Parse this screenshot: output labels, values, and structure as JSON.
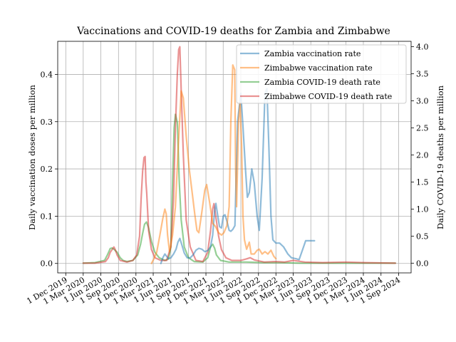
{
  "chart_data": {
    "type": "line",
    "title": "Vaccinations and COVID-19 deaths for Zambia and Zimbabwe",
    "ylabel_left": "Daily vaccination doses per million",
    "ylabel_right": "Daily COVID-19 deaths per million",
    "xlabel": "",
    "grid": true,
    "legend_position": "top-right",
    "xlim": [
      "2019-10-20",
      "2024-11-05"
    ],
    "ylim_left": [
      -0.02,
      0.47
    ],
    "ylim_right": [
      -0.18,
      4.1
    ],
    "x_tick_labels": [
      {
        "date": "2019-12-01",
        "label": "1 Dec 2019"
      },
      {
        "date": "2020-03-01",
        "label": "1 Mar 2020"
      },
      {
        "date": "2020-06-01",
        "label": "1 Jun 2020"
      },
      {
        "date": "2020-09-01",
        "label": "1 Sep 2020"
      },
      {
        "date": "2020-12-01",
        "label": "1 Dec 2020"
      },
      {
        "date": "2021-03-01",
        "label": "1 Mar 2021"
      },
      {
        "date": "2021-06-01",
        "label": "1 Jun 2021"
      },
      {
        "date": "2021-09-01",
        "label": "1 Sep 2021"
      },
      {
        "date": "2021-12-01",
        "label": "1 Dec 2021"
      },
      {
        "date": "2022-03-01",
        "label": "1 Mar 2022"
      },
      {
        "date": "2022-06-01",
        "label": "1 Jun 2022"
      },
      {
        "date": "2022-09-01",
        "label": "1 Sep 2022"
      },
      {
        "date": "2022-12-01",
        "label": "1 Dec 2022"
      },
      {
        "date": "2023-03-01",
        "label": "1 Mar 2023"
      },
      {
        "date": "2023-06-01",
        "label": "1 Jun 2023"
      },
      {
        "date": "2023-09-01",
        "label": "1 Sep 2023"
      },
      {
        "date": "2023-12-01",
        "label": "1 Dec 2023"
      },
      {
        "date": "2024-03-01",
        "label": "1 Mar 2024"
      },
      {
        "date": "2024-06-01",
        "label": "1 Jun 2024"
      },
      {
        "date": "2024-09-01",
        "label": "1 Sep 2024"
      }
    ],
    "y_ticks_left": [
      {
        "value": 0.0,
        "label": "0.0"
      },
      {
        "value": 0.1,
        "label": "0.1"
      },
      {
        "value": 0.2,
        "label": "0.2"
      },
      {
        "value": 0.3,
        "label": "0.3"
      },
      {
        "value": 0.4,
        "label": "0.4"
      }
    ],
    "y_ticks_right": [
      {
        "value": 0.0,
        "label": "0.0"
      },
      {
        "value": 0.5,
        "label": "0.5"
      },
      {
        "value": 1.0,
        "label": "1.0"
      },
      {
        "value": 1.5,
        "label": "1.5"
      },
      {
        "value": 2.0,
        "label": "2.0"
      },
      {
        "value": 2.5,
        "label": "2.5"
      },
      {
        "value": 3.0,
        "label": "3.0"
      },
      {
        "value": 3.5,
        "label": "3.5"
      },
      {
        "value": 4.0,
        "label": "4.0"
      }
    ],
    "series": [
      {
        "name": "Zambia vaccination rate",
        "axis": "left",
        "color": "#1f77b4",
        "points": [
          [
            "2021-04-10",
            0.0
          ],
          [
            "2021-04-20",
            0.012
          ],
          [
            "2021-05-01",
            0.02
          ],
          [
            "2021-05-10",
            0.015
          ],
          [
            "2021-05-20",
            0.01
          ],
          [
            "2021-06-01",
            0.012
          ],
          [
            "2021-06-15",
            0.02
          ],
          [
            "2021-06-28",
            0.03
          ],
          [
            "2021-07-08",
            0.045
          ],
          [
            "2021-07-18",
            0.053
          ],
          [
            "2021-07-28",
            0.04
          ],
          [
            "2021-08-10",
            0.022
          ],
          [
            "2021-08-25",
            0.012
          ],
          [
            "2021-09-10",
            0.012
          ],
          [
            "2021-09-25",
            0.018
          ],
          [
            "2021-10-10",
            0.028
          ],
          [
            "2021-10-25",
            0.032
          ],
          [
            "2021-11-10",
            0.03
          ],
          [
            "2021-11-25",
            0.025
          ],
          [
            "2021-12-10",
            0.027
          ],
          [
            "2021-12-25",
            0.035
          ],
          [
            "2022-01-05",
            0.06
          ],
          [
            "2022-01-15",
            0.11
          ],
          [
            "2022-01-22",
            0.127
          ],
          [
            "2022-02-01",
            0.1
          ],
          [
            "2022-02-10",
            0.078
          ],
          [
            "2022-02-20",
            0.075
          ],
          [
            "2022-03-01",
            0.1
          ],
          [
            "2022-03-10",
            0.103
          ],
          [
            "2022-03-20",
            0.09
          ],
          [
            "2022-04-01",
            0.07
          ],
          [
            "2022-04-10",
            0.068
          ],
          [
            "2022-04-20",
            0.072
          ],
          [
            "2022-05-01",
            0.08
          ],
          [
            "2022-05-15",
            0.3
          ],
          [
            "2022-06-01",
            0.36
          ],
          [
            "2022-06-12",
            0.29
          ],
          [
            "2022-06-25",
            0.2
          ],
          [
            "2022-07-05",
            0.14
          ],
          [
            "2022-07-15",
            0.15
          ],
          [
            "2022-07-28",
            0.2
          ],
          [
            "2022-08-10",
            0.17
          ],
          [
            "2022-08-25",
            0.1
          ],
          [
            "2022-09-05",
            0.07
          ],
          [
            "2022-09-20",
            0.18
          ],
          [
            "2022-10-05",
            0.36
          ],
          [
            "2022-10-15",
            0.37
          ],
          [
            "2022-10-25",
            0.25
          ],
          [
            "2022-11-05",
            0.1
          ],
          [
            "2022-11-15",
            0.05
          ],
          [
            "2022-12-01",
            0.043
          ],
          [
            "2022-12-20",
            0.043
          ],
          [
            "2023-01-10",
            0.035
          ],
          [
            "2023-02-01",
            0.02
          ],
          [
            "2023-02-20",
            0.012
          ],
          [
            "2023-03-15",
            0.01
          ],
          [
            "2023-04-01",
            0.008
          ],
          [
            "2023-04-20",
            0.03
          ],
          [
            "2023-05-05",
            0.048
          ],
          [
            "2023-06-20",
            0.048
          ]
        ]
      },
      {
        "name": "Zimbabwe vaccination rate",
        "axis": "left",
        "color": "#ff7f0e",
        "points": [
          [
            "2021-02-20",
            0.0
          ],
          [
            "2021-03-05",
            0.01
          ],
          [
            "2021-03-20",
            0.025
          ],
          [
            "2021-04-05",
            0.06
          ],
          [
            "2021-04-20",
            0.095
          ],
          [
            "2021-05-01",
            0.115
          ],
          [
            "2021-05-08",
            0.105
          ],
          [
            "2021-05-15",
            0.06
          ],
          [
            "2021-05-25",
            0.025
          ],
          [
            "2021-06-10",
            0.06
          ],
          [
            "2021-06-25",
            0.12
          ],
          [
            "2021-07-10",
            0.25
          ],
          [
            "2021-07-25",
            0.365
          ],
          [
            "2021-08-05",
            0.35
          ],
          [
            "2021-08-20",
            0.27
          ],
          [
            "2021-09-05",
            0.2
          ],
          [
            "2021-09-20",
            0.15
          ],
          [
            "2021-10-05",
            0.1
          ],
          [
            "2021-10-15",
            0.07
          ],
          [
            "2021-10-25",
            0.065
          ],
          [
            "2021-11-10",
            0.11
          ],
          [
            "2021-11-25",
            0.155
          ],
          [
            "2021-12-05",
            0.167
          ],
          [
            "2021-12-20",
            0.13
          ],
          [
            "2022-01-05",
            0.085
          ],
          [
            "2022-01-20",
            0.078
          ],
          [
            "2022-02-05",
            0.065
          ],
          [
            "2022-02-20",
            0.06
          ],
          [
            "2022-03-05",
            0.065
          ],
          [
            "2022-03-20",
            0.08
          ],
          [
            "2022-04-01",
            0.12
          ],
          [
            "2022-04-10",
            0.3
          ],
          [
            "2022-04-20",
            0.42
          ],
          [
            "2022-04-30",
            0.41
          ],
          [
            "2022-05-05",
            0.2
          ],
          [
            "2022-05-10",
            0.12
          ],
          [
            "2022-05-20",
            0.3
          ],
          [
            "2022-05-28",
            0.34
          ],
          [
            "2022-06-05",
            0.25
          ],
          [
            "2022-06-12",
            0.1
          ],
          [
            "2022-06-20",
            0.05
          ],
          [
            "2022-07-01",
            0.03
          ],
          [
            "2022-07-15",
            0.045
          ],
          [
            "2022-07-25",
            0.02
          ],
          [
            "2022-08-10",
            0.02
          ],
          [
            "2022-08-25",
            0.028
          ],
          [
            "2022-09-05",
            0.03
          ],
          [
            "2022-09-20",
            0.02
          ],
          [
            "2022-10-05",
            0.025
          ],
          [
            "2022-10-20",
            0.02
          ],
          [
            "2022-11-05",
            0.028
          ],
          [
            "2022-11-20",
            0.015
          ],
          [
            "2022-12-01",
            0.01
          ]
        ]
      },
      {
        "name": "Zambia COVID-19 death rate",
        "axis": "right",
        "color": "#2ca02c",
        "points": [
          [
            "2020-03-01",
            0.0
          ],
          [
            "2020-05-01",
            0.01
          ],
          [
            "2020-06-20",
            0.05
          ],
          [
            "2020-07-05",
            0.15
          ],
          [
            "2020-07-20",
            0.27
          ],
          [
            "2020-07-30",
            0.28
          ],
          [
            "2020-08-10",
            0.25
          ],
          [
            "2020-08-25",
            0.2
          ],
          [
            "2020-09-10",
            0.1
          ],
          [
            "2020-09-25",
            0.05
          ],
          [
            "2020-10-15",
            0.03
          ],
          [
            "2020-11-15",
            0.05
          ],
          [
            "2020-12-10",
            0.15
          ],
          [
            "2020-12-25",
            0.35
          ],
          [
            "2021-01-05",
            0.55
          ],
          [
            "2021-01-15",
            0.72
          ],
          [
            "2021-01-25",
            0.76
          ],
          [
            "2021-02-05",
            0.65
          ],
          [
            "2021-02-20",
            0.4
          ],
          [
            "2021-03-10",
            0.2
          ],
          [
            "2021-04-01",
            0.1
          ],
          [
            "2021-05-01",
            0.05
          ],
          [
            "2021-05-20",
            0.08
          ],
          [
            "2021-06-01",
            0.3
          ],
          [
            "2021-06-10",
            1.5
          ],
          [
            "2021-06-18",
            2.5
          ],
          [
            "2021-06-25",
            2.75
          ],
          [
            "2021-07-05",
            2.6
          ],
          [
            "2021-07-15",
            1.5
          ],
          [
            "2021-07-25",
            0.8
          ],
          [
            "2021-08-10",
            0.3
          ],
          [
            "2021-09-01",
            0.1
          ],
          [
            "2021-10-01",
            0.03
          ],
          [
            "2021-11-15",
            0.02
          ],
          [
            "2021-12-10",
            0.1
          ],
          [
            "2021-12-25",
            0.3
          ],
          [
            "2022-01-05",
            0.35
          ],
          [
            "2022-01-15",
            0.28
          ],
          [
            "2022-01-25",
            0.15
          ],
          [
            "2022-02-15",
            0.05
          ],
          [
            "2022-04-01",
            0.02
          ],
          [
            "2022-07-01",
            0.02
          ],
          [
            "2022-10-01",
            0.01
          ],
          [
            "2023-01-01",
            0.01
          ],
          [
            "2023-04-01",
            0.0
          ],
          [
            "2024-08-15",
            0.0
          ]
        ]
      },
      {
        "name": "Zimbabwe COVID-19 death rate",
        "axis": "right",
        "color": "#d62728",
        "points": [
          [
            "2020-03-01",
            0.0
          ],
          [
            "2020-05-01",
            0.0
          ],
          [
            "2020-06-25",
            0.03
          ],
          [
            "2020-07-10",
            0.1
          ],
          [
            "2020-07-20",
            0.2
          ],
          [
            "2020-07-30",
            0.25
          ],
          [
            "2020-08-08",
            0.3
          ],
          [
            "2020-08-15",
            0.25
          ],
          [
            "2020-08-25",
            0.15
          ],
          [
            "2020-09-10",
            0.05
          ],
          [
            "2020-10-15",
            0.02
          ],
          [
            "2020-11-15",
            0.05
          ],
          [
            "2020-12-05",
            0.15
          ],
          [
            "2020-12-20",
            0.5
          ],
          [
            "2020-12-28",
            1.2
          ],
          [
            "2021-01-05",
            1.7
          ],
          [
            "2021-01-12",
            1.95
          ],
          [
            "2021-01-18",
            1.97
          ],
          [
            "2021-01-22",
            1.5
          ],
          [
            "2021-01-26",
            1.3
          ],
          [
            "2021-02-05",
            0.6
          ],
          [
            "2021-02-20",
            0.25
          ],
          [
            "2021-03-10",
            0.1
          ],
          [
            "2021-04-10",
            0.05
          ],
          [
            "2021-05-10",
            0.05
          ],
          [
            "2021-06-01",
            0.3
          ],
          [
            "2021-06-15",
            1.2
          ],
          [
            "2021-06-25",
            2.5
          ],
          [
            "2021-07-05",
            3.5
          ],
          [
            "2021-07-12",
            3.95
          ],
          [
            "2021-07-18",
            4.0
          ],
          [
            "2021-07-25",
            3.2
          ],
          [
            "2021-08-05",
            2.0
          ],
          [
            "2021-08-20",
            0.8
          ],
          [
            "2021-09-10",
            0.3
          ],
          [
            "2021-10-10",
            0.05
          ],
          [
            "2021-11-15",
            0.03
          ],
          [
            "2021-12-10",
            0.2
          ],
          [
            "2021-12-25",
            0.6
          ],
          [
            "2022-01-05",
            1.0
          ],
          [
            "2022-01-12",
            1.1
          ],
          [
            "2022-01-22",
            0.85
          ],
          [
            "2022-02-05",
            0.5
          ],
          [
            "2022-02-20",
            0.25
          ],
          [
            "2022-03-15",
            0.1
          ],
          [
            "2022-04-15",
            0.05
          ],
          [
            "2022-06-01",
            0.05
          ],
          [
            "2022-07-01",
            0.08
          ],
          [
            "2022-07-20",
            0.1
          ],
          [
            "2022-08-10",
            0.06
          ],
          [
            "2022-10-01",
            0.02
          ],
          [
            "2022-12-01",
            0.03
          ],
          [
            "2023-01-15",
            0.02
          ],
          [
            "2023-03-01",
            0.05
          ],
          [
            "2023-05-01",
            0.02
          ],
          [
            "2023-08-01",
            0.01
          ],
          [
            "2023-12-01",
            0.02
          ],
          [
            "2024-03-01",
            0.01
          ],
          [
            "2024-08-15",
            0.0
          ]
        ]
      }
    ]
  }
}
